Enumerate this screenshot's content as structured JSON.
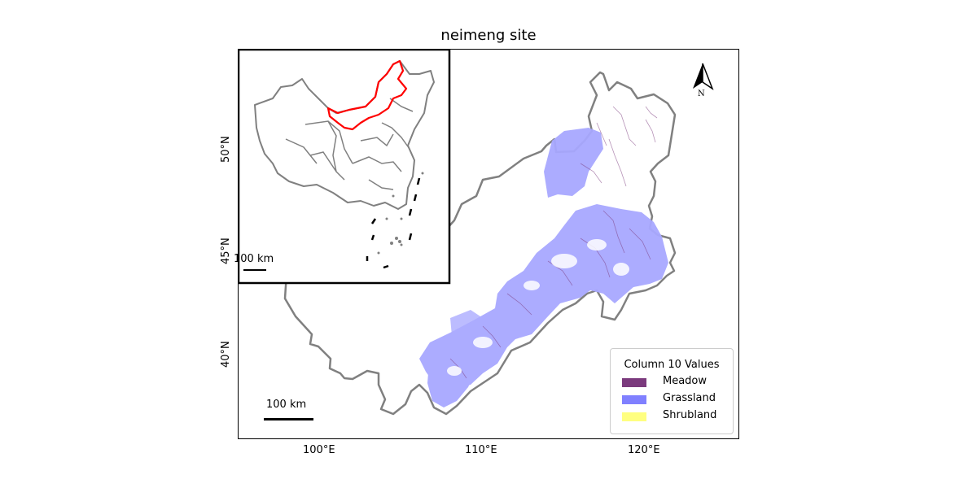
{
  "title": "neimeng site",
  "axes": {
    "x_ticks": [
      "100°E",
      "110°E",
      "120°E"
    ],
    "y_ticks": [
      "50°N",
      "45°N",
      "40°N"
    ]
  },
  "legend": {
    "title": "Column 10 Values",
    "items": [
      {
        "label": "Meadow",
        "color": "#7b3a7d"
      },
      {
        "label": "Grassland",
        "color": "#8080ff"
      },
      {
        "label": "Shrubland",
        "color": "#ffff80"
      }
    ]
  },
  "scale_bar_main": "100 km",
  "scale_bar_inset": "100 km",
  "north_arrow": {
    "label": "N",
    "icon": "north-arrow-icon"
  },
  "colors": {
    "boundary": "#808080",
    "highlight": "#ff0000",
    "grassland_fill": "#a8a8ff",
    "meadow": "#7b3a7d"
  }
}
